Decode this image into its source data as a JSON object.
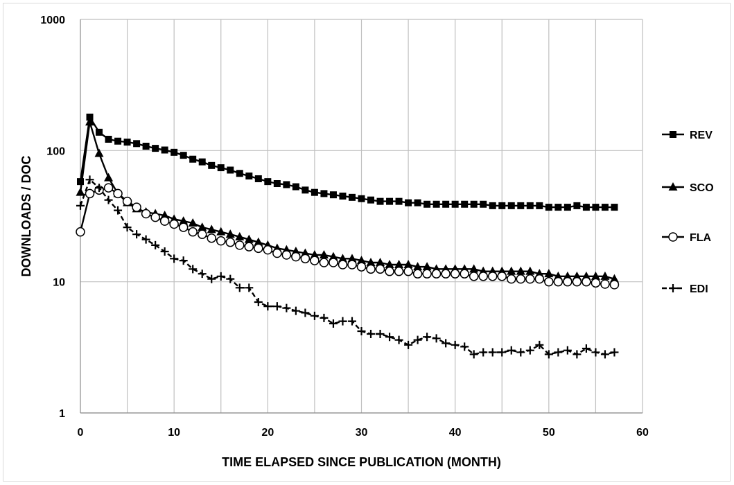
{
  "chart_data": {
    "type": "line",
    "title": "",
    "xlabel": "TIME ELAPSED SINCE PUBLICATION  (MONTH)",
    "ylabel": "DOWNLOADS / DOC",
    "xlim": [
      0,
      60
    ],
    "ylim": [
      1,
      1000
    ],
    "yscale": "log",
    "grid": true,
    "legend_position": "right",
    "x_ticks": [
      "0",
      "10",
      "20",
      "30",
      "40",
      "50",
      "60"
    ],
    "y_ticks": [
      "1",
      "10",
      "100",
      "1000"
    ],
    "x": [
      0,
      1,
      2,
      3,
      4,
      5,
      6,
      7,
      8,
      9,
      10,
      11,
      12,
      13,
      14,
      15,
      16,
      17,
      18,
      19,
      20,
      21,
      22,
      23,
      24,
      25,
      26,
      27,
      28,
      29,
      30,
      31,
      32,
      33,
      34,
      35,
      36,
      37,
      38,
      39,
      40,
      41,
      42,
      43,
      44,
      45,
      46,
      47,
      48,
      49,
      50,
      51,
      52,
      53,
      54,
      55,
      56,
      57
    ],
    "series": [
      {
        "name": "REV",
        "marker": "square",
        "line": "solid",
        "values": [
          58,
          180,
          138,
          122,
          118,
          116,
          113,
          108,
          104,
          101,
          97,
          92,
          86,
          82,
          77,
          74,
          71,
          67,
          64,
          61,
          58,
          56,
          55,
          53,
          50,
          48,
          47,
          46,
          45,
          44,
          43,
          42,
          41,
          41,
          41,
          40,
          40,
          39,
          39,
          39,
          39,
          39,
          39,
          39,
          38,
          38,
          38,
          38,
          38,
          38,
          37,
          37,
          37,
          38,
          37,
          37,
          37,
          37
        ]
      },
      {
        "name": "SCO",
        "marker": "triangle",
        "line": "solid",
        "values": [
          48,
          165,
          95,
          62,
          47,
          40,
          36,
          34,
          33,
          32,
          30,
          29,
          28,
          26,
          25,
          24,
          23,
          22,
          21,
          20,
          19,
          18,
          17.5,
          17,
          16.5,
          16,
          16,
          15.5,
          15,
          15,
          14.5,
          14,
          14,
          13.5,
          13.5,
          13.5,
          13,
          13,
          12.5,
          12.5,
          12.5,
          12.5,
          12.5,
          12,
          12,
          12,
          12,
          12,
          12,
          11.5,
          11.5,
          11,
          11,
          11,
          11,
          11,
          11,
          10.5
        ]
      },
      {
        "name": "FLA",
        "marker": "open-circle",
        "line": "solid",
        "values": [
          24,
          47,
          50,
          52,
          47,
          41,
          37,
          33,
          31,
          29,
          27.5,
          26,
          24,
          23,
          21.5,
          20.5,
          20,
          19,
          18.5,
          18,
          17.5,
          16.5,
          16,
          15.5,
          15,
          14.5,
          14,
          14,
          13.5,
          13.5,
          13,
          12.5,
          12.5,
          12,
          12,
          12,
          11.5,
          11.5,
          11.5,
          11.5,
          11.5,
          11.5,
          11,
          11,
          11,
          11,
          10.5,
          10.5,
          10.5,
          10.5,
          10,
          10,
          10,
          10,
          10,
          9.8,
          9.6,
          9.5
        ]
      },
      {
        "name": "EDI",
        "marker": "plus",
        "line": "dashed",
        "values": [
          38,
          60,
          52,
          42,
          35,
          26,
          23,
          21,
          19,
          17,
          15,
          14.5,
          12.5,
          11.5,
          10.5,
          11,
          10.5,
          9,
          9,
          7,
          6.5,
          6.5,
          6.3,
          6,
          5.8,
          5.5,
          5.3,
          4.8,
          5,
          5,
          4.2,
          4,
          4,
          3.8,
          3.6,
          3.3,
          3.6,
          3.8,
          3.7,
          3.4,
          3.3,
          3.2,
          2.8,
          2.9,
          2.9,
          2.9,
          3.0,
          2.9,
          3.0,
          3.3,
          2.8,
          2.9,
          3.0,
          2.8,
          3.1,
          2.9,
          2.8,
          2.9
        ]
      }
    ]
  }
}
